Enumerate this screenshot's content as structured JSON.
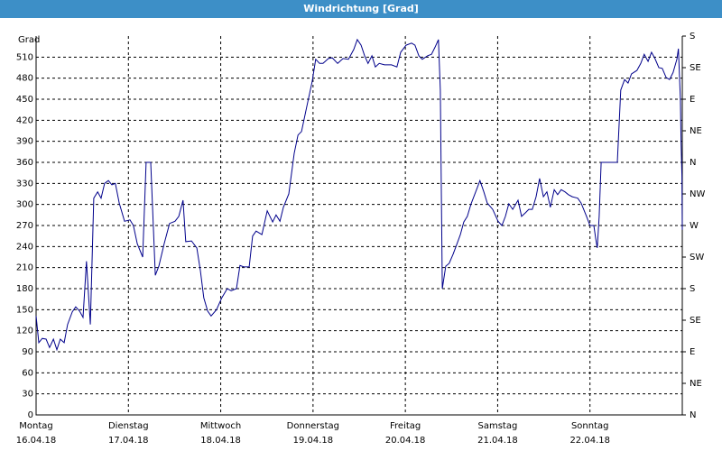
{
  "chart_data": {
    "type": "line",
    "title": "Windrichtung [Grad]",
    "y_label": "Grad",
    "xlim": [
      0,
      168
    ],
    "xticks": [
      {
        "value": 0,
        "label": "Montag",
        "sublabel": "16.04.18"
      },
      {
        "value": 24,
        "label": "Dienstag",
        "sublabel": "17.04.18"
      },
      {
        "value": 48,
        "label": "Mittwoch",
        "sublabel": "18.04.18"
      },
      {
        "value": 72,
        "label": "Donnerstag",
        "sublabel": "19.04.18"
      },
      {
        "value": 96,
        "label": "Freitag",
        "sublabel": "20.04.18"
      },
      {
        "value": 120,
        "label": "Samstag",
        "sublabel": "21.04.18"
      },
      {
        "value": 144,
        "label": "Sonntag",
        "sublabel": "22.04.18"
      }
    ],
    "ylim": [
      0,
      540
    ],
    "yticks": [
      0,
      30,
      60,
      90,
      120,
      150,
      180,
      210,
      240,
      270,
      300,
      330,
      360,
      390,
      420,
      450,
      480,
      510
    ],
    "y2lim": [
      0,
      540
    ],
    "y2ticks": [
      {
        "value": 0,
        "label": "N"
      },
      {
        "value": 45,
        "label": "NE"
      },
      {
        "value": 90,
        "label": "E"
      },
      {
        "value": 135,
        "label": "SE"
      },
      {
        "value": 180,
        "label": "S"
      },
      {
        "value": 225,
        "label": "SW"
      },
      {
        "value": 270,
        "label": "W"
      },
      {
        "value": 315,
        "label": "NW"
      },
      {
        "value": 360,
        "label": "N"
      },
      {
        "value": 405,
        "label": "NE"
      },
      {
        "value": 450,
        "label": "E"
      },
      {
        "value": 495,
        "label": "SE"
      },
      {
        "value": 540,
        "label": "S"
      }
    ],
    "grid": true,
    "series": [
      {
        "color": "#00008b",
        "x": [
          0,
          0.7,
          1.6,
          2.6,
          3.5,
          4.5,
          5.4,
          6.3,
          7.3,
          8.2,
          9.4,
          10.3,
          11.3,
          12.2,
          13.1,
          14.1,
          15.0,
          16.0,
          16.9,
          17.8,
          18.8,
          19.7,
          20.6,
          21.6,
          23.0,
          24.4,
          25.3,
          26.3,
          27.7,
          28.6,
          29.8,
          31.0,
          31.9,
          33.3,
          34.7,
          36.1,
          37.1,
          38.2,
          38.9,
          40.4,
          41.8,
          42.7,
          43.6,
          44.6,
          45.5,
          46.9,
          48.3,
          49.7,
          50.7,
          52.1,
          53.0,
          54.0,
          55.4,
          56.3,
          57.2,
          58.7,
          60.1,
          61.5,
          62.4,
          63.4,
          64.3,
          65.7,
          67.1,
          68.1,
          69.0,
          70.4,
          71.8,
          72.7,
          73.7,
          74.6,
          76.0,
          77.0,
          78.4,
          79.8,
          81.2,
          82.6,
          83.5,
          84.5,
          85.4,
          86.3,
          87.3,
          88.2,
          89.2,
          90.6,
          92.4,
          93.8,
          94.8,
          96.2,
          97.6,
          98.5,
          99.5,
          100.4,
          101.8,
          102.8,
          103.7,
          104.6,
          105.1,
          105.6,
          106.5,
          107.4,
          108.4,
          109.3,
          110.3,
          111.2,
          112.1,
          113.1,
          114.5,
          115.4,
          116.4,
          117.3,
          118.7,
          120.1,
          121.1,
          122.0,
          122.9,
          123.9,
          125.3,
          126.2,
          127.2,
          128.1,
          129.0,
          130.0,
          130.9,
          131.9,
          132.8,
          133.7,
          134.7,
          135.6,
          136.5,
          137.5,
          138.4,
          139.4,
          140.8,
          141.7,
          143.1,
          144.0,
          145.0,
          145.5,
          145.9,
          146.4,
          146.9,
          148.3,
          149.7,
          151.1,
          152.0,
          153.0,
          153.9,
          154.8,
          156.2,
          157.2,
          158.1,
          159.1,
          160.0,
          160.9,
          161.9,
          162.8,
          163.8,
          164.7,
          165.6,
          166.6,
          167.0,
          167.5,
          167.7,
          167.9,
          168.0
        ],
        "values": [
          141,
          103,
          109,
          108,
          96,
          108,
          93,
          108,
          103,
          129,
          147,
          154,
          148,
          139,
          219,
          129,
          309,
          318,
          309,
          330,
          334,
          328,
          330,
          302,
          276,
          278,
          270,
          244,
          225,
          360,
          360,
          199,
          212,
          244,
          273,
          276,
          283,
          306,
          247,
          248,
          238,
          206,
          167,
          148,
          141,
          150,
          167,
          180,
          177,
          180,
          213,
          211,
          211,
          255,
          262,
          257,
          291,
          275,
          285,
          276,
          296,
          315,
          373,
          399,
          404,
          440,
          476,
          507,
          501,
          501,
          508,
          509,
          501,
          508,
          507,
          521,
          535,
          527,
          512,
          501,
          512,
          496,
          501,
          499,
          499,
          496,
          517,
          527,
          530,
          527,
          512,
          507,
          512,
          514,
          524,
          535,
          463,
          180,
          212,
          216,
          229,
          242,
          257,
          275,
          283,
          301,
          321,
          334,
          318,
          302,
          293,
          276,
          270,
          283,
          301,
          293,
          306,
          283,
          288,
          293,
          293,
          311,
          337,
          311,
          318,
          296,
          321,
          314,
          321,
          318,
          314,
          311,
          309,
          302,
          283,
          270,
          270,
          251,
          238,
          283,
          360,
          360,
          360,
          360,
          463,
          478,
          473,
          486,
          491,
          501,
          514,
          504,
          517,
          508,
          495,
          494,
          481,
          478,
          488,
          507,
          522,
          450,
          386,
          341,
          264
        ]
      }
    ]
  }
}
